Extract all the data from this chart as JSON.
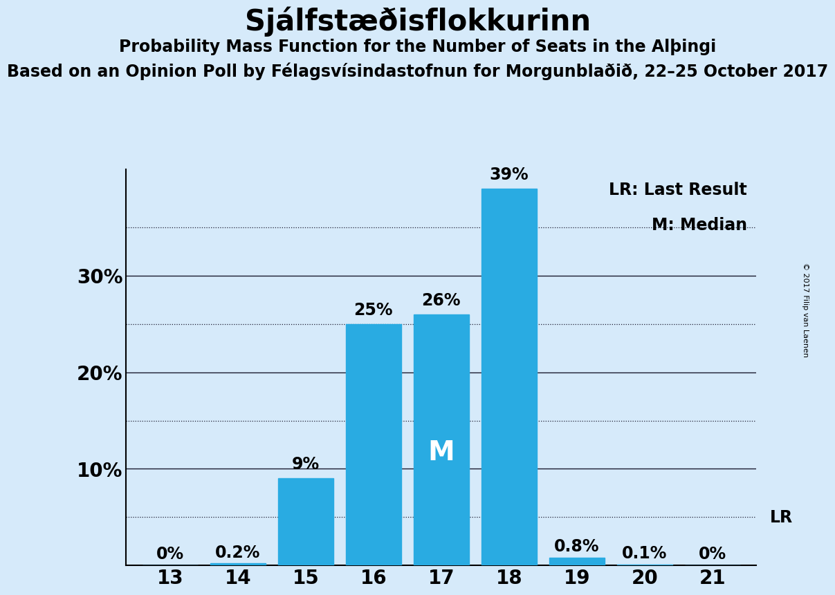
{
  "title": "Sjálfstæðisflokkurinn",
  "subtitle1": "Probability Mass Function for the Number of Seats in the Alþingi",
  "subtitle2": "Based on an Opinion Poll by Félagsvísindastofnun for Morgunblaðið, 22–25 October 2017",
  "copyright": "© 2017 Filip van Laenen",
  "seats": [
    13,
    14,
    15,
    16,
    17,
    18,
    19,
    20,
    21
  ],
  "probabilities": [
    0.0,
    0.2,
    9.0,
    25.0,
    26.0,
    39.0,
    0.8,
    0.1,
    0.0
  ],
  "bar_labels": [
    "0%",
    "0.2%",
    "9%",
    "25%",
    "26%",
    "39%",
    "0.8%",
    "0.1%",
    "0%"
  ],
  "bar_color": "#29ABE2",
  "background_color": "#D6EAFA",
  "median_seat": 17,
  "lr_seat": 21,
  "legend_lr": "LR: Last Result",
  "legend_m": "M: Median",
  "yticks": [
    10,
    20,
    30
  ],
  "ytick_labels": [
    "10%",
    "20%",
    "30%"
  ],
  "solid_gridlines": [
    10,
    20,
    30
  ],
  "dotted_gridlines": [
    5,
    15,
    25,
    35
  ],
  "ylim": [
    0,
    41
  ],
  "title_fontsize": 30,
  "subtitle1_fontsize": 17,
  "subtitle2_fontsize": 17,
  "axis_tick_fontsize": 20,
  "bar_label_fontsize": 17,
  "median_label_fontsize": 28,
  "legend_fontsize": 17
}
